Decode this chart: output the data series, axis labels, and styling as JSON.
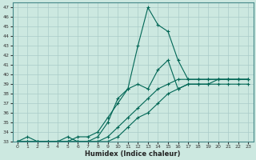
{
  "xlabel": "Humidex (Indice chaleur)",
  "bg_color": "#cce8e0",
  "grid_color": "#aaccc8",
  "line_color": "#006655",
  "xlim": [
    -0.5,
    23.5
  ],
  "ylim": [
    33,
    47.5
  ],
  "xticks": [
    0,
    1,
    2,
    3,
    4,
    5,
    6,
    7,
    8,
    9,
    10,
    11,
    12,
    13,
    14,
    15,
    16,
    17,
    18,
    19,
    20,
    21,
    22,
    23
  ],
  "yticks": [
    33,
    34,
    35,
    36,
    37,
    38,
    39,
    40,
    41,
    42,
    43,
    44,
    45,
    46,
    47
  ],
  "s1_x": [
    0,
    1,
    2,
    3,
    4,
    5,
    6,
    7,
    8,
    9,
    10,
    11,
    12,
    13,
    14,
    15,
    16,
    17,
    18,
    19,
    20,
    21,
    22,
    23
  ],
  "s1_y": [
    33,
    33,
    33,
    33,
    33,
    33,
    33.5,
    33.5,
    34.0,
    35.5,
    37.0,
    38.5,
    43.0,
    47.0,
    45.2,
    44.5,
    41.5,
    39.5,
    39.5,
    39.5,
    39.5,
    39.5,
    39.5,
    39.5
  ],
  "s2_x": [
    0,
    1,
    2,
    3,
    4,
    5,
    6,
    7,
    8,
    9,
    10,
    11,
    12,
    13,
    14,
    15,
    16,
    17,
    18,
    19,
    20,
    21,
    22,
    23
  ],
  "s2_y": [
    33,
    33,
    33,
    33,
    33,
    33,
    33,
    33,
    33.5,
    35.0,
    37.5,
    38.5,
    39.0,
    38.5,
    40.5,
    41.5,
    38.5,
    39.0,
    39.0,
    39.0,
    39.5,
    39.5,
    39.5,
    39.5
  ],
  "s3_x": [
    0,
    1,
    2,
    3,
    4,
    5,
    6,
    7,
    8,
    9,
    10,
    11,
    12,
    13,
    14,
    15,
    16,
    17,
    18,
    19,
    20,
    21,
    22,
    23
  ],
  "s3_y": [
    33,
    33,
    33,
    33,
    33,
    33,
    33,
    33,
    33,
    33.5,
    34.5,
    35.5,
    36.5,
    37.5,
    38.5,
    39.0,
    39.5,
    39.5,
    39.5,
    39.5,
    39.5,
    39.5,
    39.5,
    39.5
  ],
  "s4_x": [
    0,
    1,
    2,
    3,
    4,
    5,
    6,
    7,
    8,
    9,
    10,
    11,
    12,
    13,
    14,
    15,
    16,
    17,
    18,
    19,
    20,
    21,
    22,
    23
  ],
  "s4_y": [
    33,
    33.5,
    33,
    33,
    33,
    33.5,
    33,
    33,
    33,
    33,
    33.5,
    34.5,
    35.5,
    36.0,
    37.0,
    38.0,
    38.5,
    39.0,
    39.0,
    39.0,
    39.0,
    39.0,
    39.0,
    39.0
  ]
}
